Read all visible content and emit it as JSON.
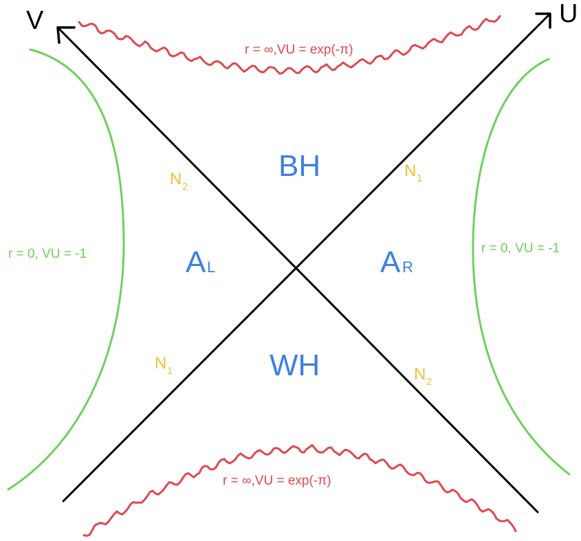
{
  "colors": {
    "axis": "#000000",
    "singularity": "#e0474c",
    "boundary": "#6cd15c",
    "region": "#3d7fe6",
    "horizon": "#f2c232"
  },
  "axes": {
    "v_label": "V",
    "u_label": "U"
  },
  "regions": {
    "bh": "BH",
    "wh": "WH",
    "left": {
      "main": "A",
      "sub": "L"
    },
    "right": {
      "main": "A",
      "sub": "R"
    }
  },
  "horizons": {
    "upper_left": {
      "main": "N",
      "sub": "2"
    },
    "upper_right": {
      "main": "N",
      "sub": "1"
    },
    "lower_left": {
      "main": "N",
      "sub": "1"
    },
    "lower_right": {
      "main": "N",
      "sub": "2"
    }
  },
  "singularities": {
    "top_caption": "r = ∞,VU = exp(-π)",
    "bottom_caption": "r = ∞,VU = exp(-π)"
  },
  "boundaries": {
    "left_caption": "r = 0, VU = -1",
    "right_caption": "r = 0, VU = -1"
  }
}
